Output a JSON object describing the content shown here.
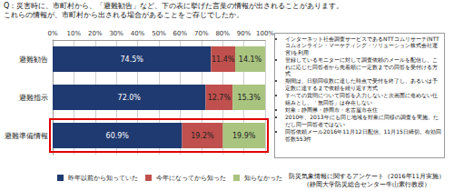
{
  "chart_data": {
    "type": "bar",
    "orientation": "horizontal",
    "stacked": true,
    "data_labels": true,
    "grid": true,
    "legend": "bottom",
    "categories": [
      "避難勧告",
      "避難指示",
      "避難準備情報"
    ],
    "series": [
      {
        "name": "昨年以前から知っていた",
        "color": "#1f3a70",
        "values": [
          74.5,
          72.0,
          60.9
        ],
        "value_labels": [
          "74.5%",
          "72.0%",
          "60.9%"
        ]
      },
      {
        "name": "今年になってから知った",
        "color": "#c0504d",
        "values": [
          11.4,
          12.7,
          19.2
        ],
        "value_labels": [
          "11.4%",
          "12.7%",
          "19.2%"
        ]
      },
      {
        "name": "知らなかった",
        "color": "#a9c47f",
        "values": [
          14.1,
          15.3,
          19.9
        ],
        "value_labels": [
          "14.1%",
          "15.3%",
          "19.9%"
        ]
      }
    ],
    "xlim": [
      0,
      100
    ],
    "xticks": [
      {
        "value": 0,
        "label": "0%"
      },
      {
        "value": 10,
        "label": "10%"
      },
      {
        "value": 20,
        "label": "20%"
      },
      {
        "value": 30,
        "label": "30%"
      },
      {
        "value": 40,
        "label": "40%"
      },
      {
        "value": 50,
        "label": "50%"
      },
      {
        "value": 60,
        "label": "60%"
      },
      {
        "value": 70,
        "label": "70%"
      },
      {
        "value": 80,
        "label": "80%"
      },
      {
        "value": 90,
        "label": "90%"
      },
      {
        "value": 100,
        "label": "100%"
      }
    ],
    "annotations": {
      "question": [
        "Q：災害時に、市町村から、「避難勧告」など、下の表に挙げた言葉の情報が出されることがあります。",
        "これらの情報が、市町村から出される場合があることをご存じでしたか。"
      ],
      "notes": [
        "インターネット社会調査サービスであるNTTコムリサーチ(NTTコムオンライン・マーケティング・ソリューション株式会社運営)を利用",
        "登録しているモニターに対して調査依頼のメールを配信し、これに応じた回答者から先着順に一定数までの回答を受付ける方式",
        "期間は、日額回収数に達した時点で受付を終了し、あるいは予定数に達するまで依頼を繰り返す方式",
        "すべての質問について回答を入力しないと次画面に進めない仕組みとし、「無回答」は存在しない",
        "対象：静岡県・静岡市・名古屋市在住",
        "2010年、2013年にも同じ地域を対象に同様の調査を実施。ただし同一回答者ではない",
        "回答依頼メール2016年11月12日配信、11月15日締切。有効回答数553件"
      ],
      "source": [
        "防災気象情報に関するアンケート（2016年11月実施）",
        "（静岡大学防災総合センター牛山素行教授）"
      ]
    }
  }
}
